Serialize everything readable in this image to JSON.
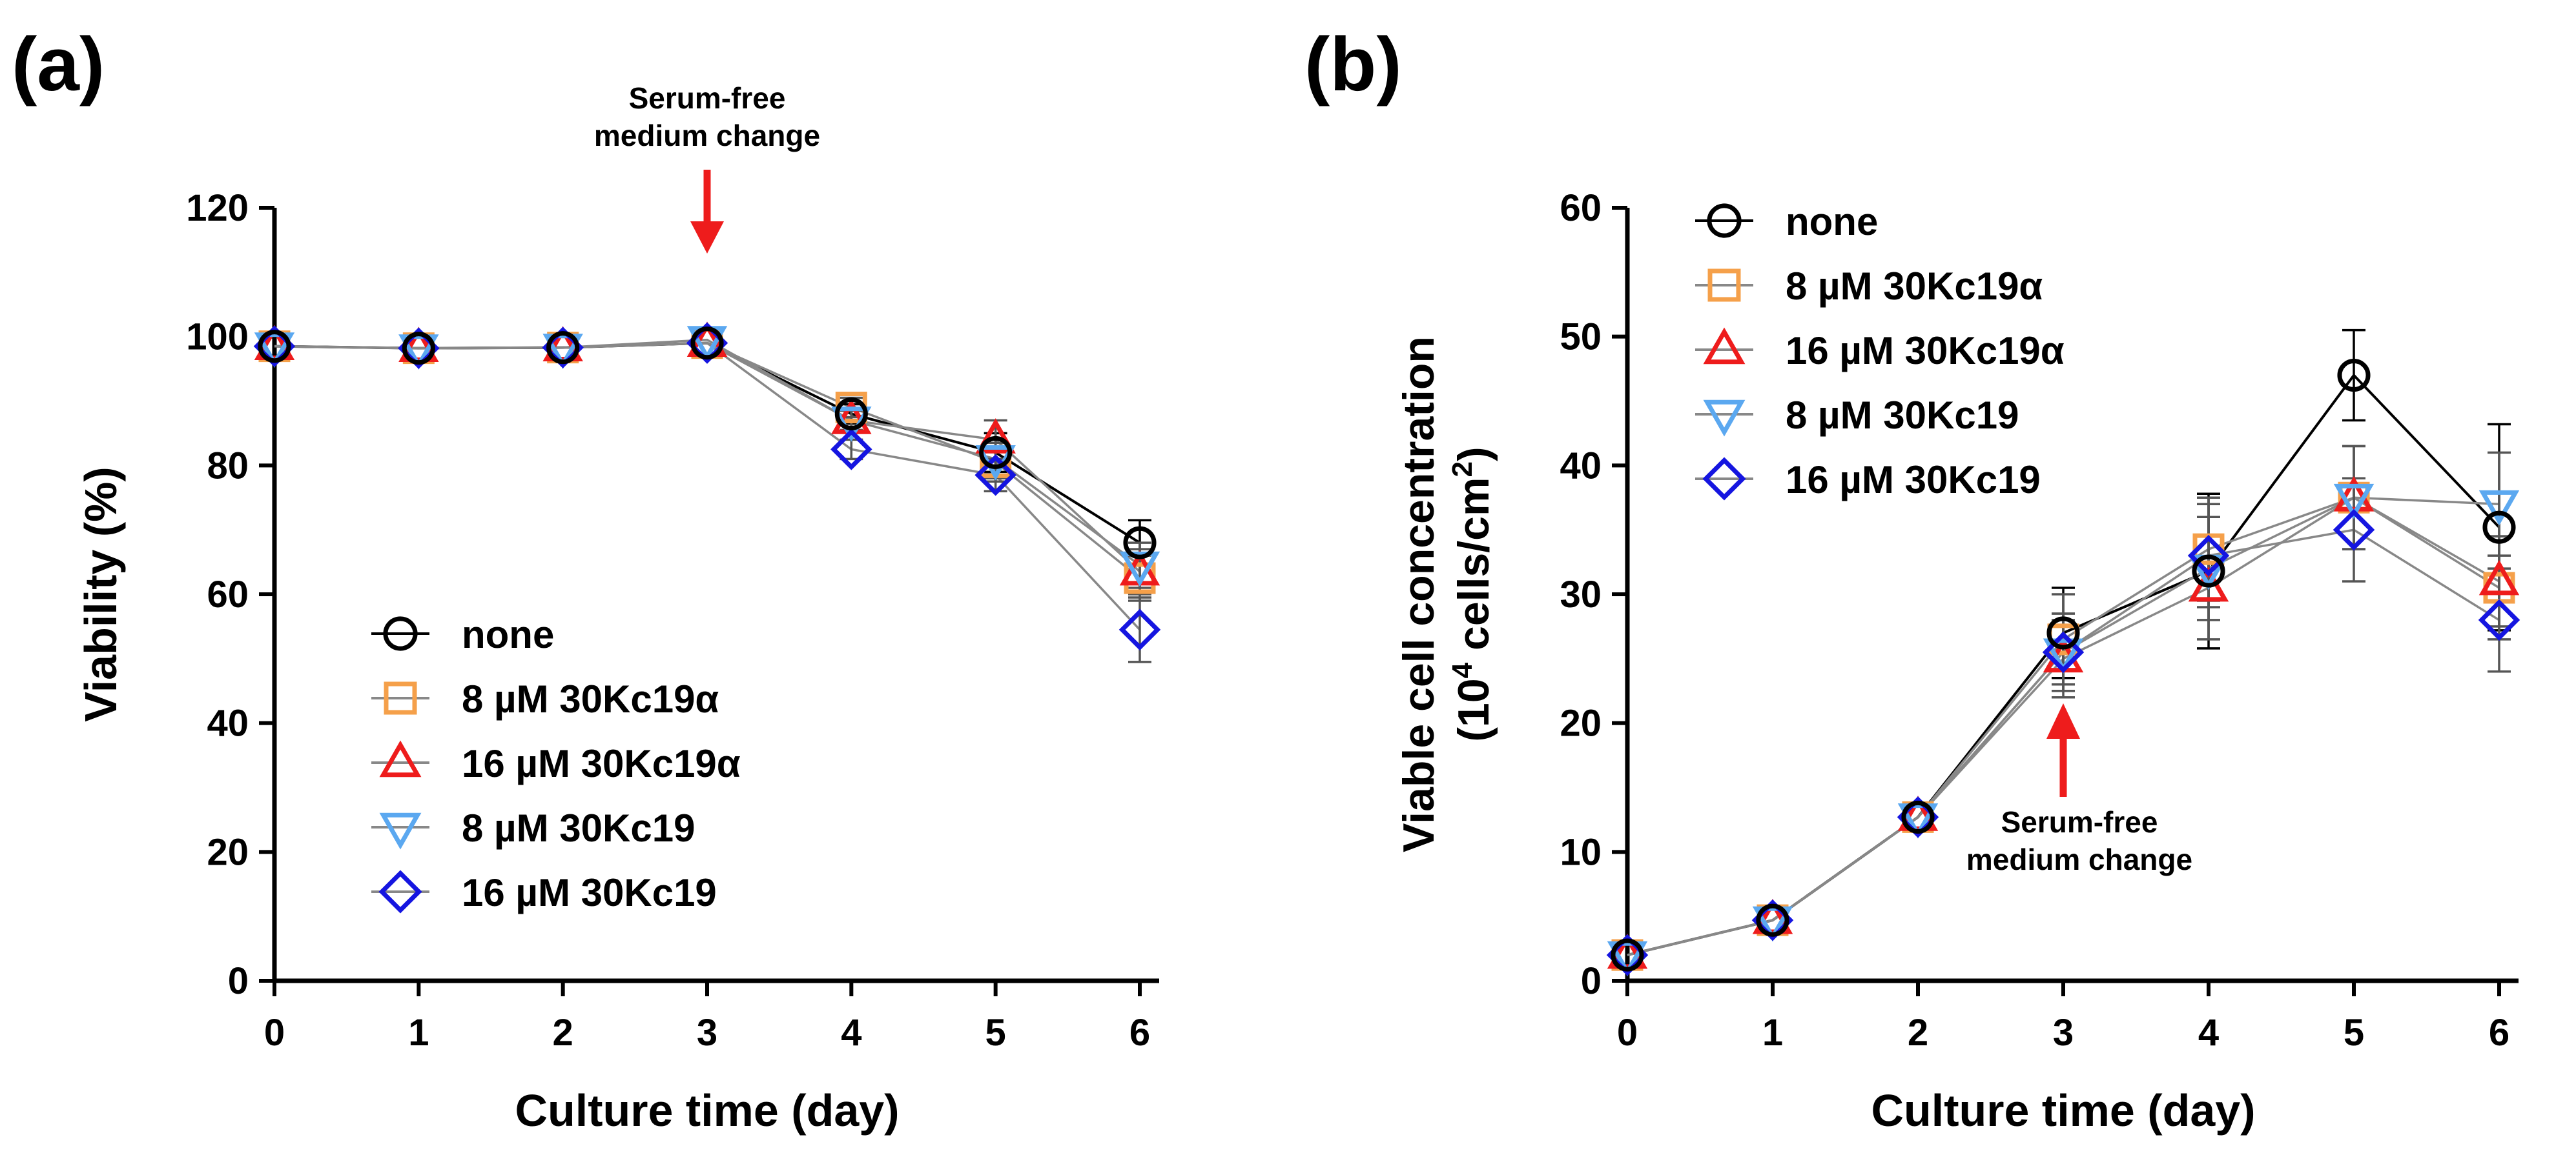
{
  "colors": {
    "none": "#000000",
    "8 µM 30Kc19α": "#F5A04A",
    "16 µM 30Kc19α": "#EE1C1C",
    "8 µM 30Kc19": "#5BA8F0",
    "16 µM 30Kc19": "#1515E0",
    "axis": "#000000",
    "annotation_arrow": "#EE1C1C",
    "connector_line": "#888888"
  },
  "chart_data": [
    {
      "panel_label": "(a)",
      "type": "line",
      "title": "",
      "xlabel": "Culture time (day)",
      "ylabel": "Viability (%)",
      "xlim": [
        0,
        6
      ],
      "ylim": [
        0,
        120
      ],
      "xticks": [
        "0",
        "1",
        "2",
        "3",
        "4",
        "5",
        "6"
      ],
      "yticks": [
        "0",
        "20",
        "40",
        "60",
        "80",
        "100",
        "120"
      ],
      "x": [
        0,
        1,
        2,
        3,
        4,
        5,
        6
      ],
      "legend_position": "bottom-left",
      "series": [
        {
          "name": "none",
          "marker": "circle",
          "values": [
            98.5,
            98.2,
            98.3,
            99.0,
            88.0,
            82.0,
            68.0
          ],
          "errors": [
            0,
            0,
            0,
            0,
            1.5,
            3.0,
            3.5
          ]
        },
        {
          "name": "8 µM 30Kc19α",
          "marker": "square",
          "values": [
            98.5,
            98.2,
            98.3,
            99.0,
            89.0,
            80.5,
            62.5
          ],
          "errors": [
            0,
            0,
            0,
            0,
            1.5,
            3.0,
            3.5
          ]
        },
        {
          "name": "16 µM 30Kc19α",
          "marker": "triangle-up",
          "values": [
            98.5,
            98.2,
            98.3,
            99.0,
            87.0,
            84.0,
            63.5
          ],
          "errors": [
            0,
            0,
            0,
            0,
            1.5,
            3.0,
            3.5
          ]
        },
        {
          "name": "8 µM 30Kc19",
          "marker": "triangle-down",
          "values": [
            98.5,
            98.2,
            98.3,
            99.5,
            87.0,
            81.0,
            64.5
          ],
          "errors": [
            0,
            0,
            0,
            0,
            1.5,
            3.0,
            3.5
          ]
        },
        {
          "name": "16 µM 30Kc19",
          "marker": "diamond",
          "values": [
            98.5,
            98.2,
            98.3,
            99.0,
            82.5,
            78.5,
            54.5
          ],
          "errors": [
            0,
            0,
            0,
            0,
            1.5,
            2.5,
            5.0
          ]
        }
      ],
      "annotation": {
        "lines": [
          "Serum-free",
          "medium change"
        ],
        "x": 3,
        "arrow": "down"
      }
    },
    {
      "panel_label": "(b)",
      "type": "line",
      "title": "",
      "xlabel": "Culture time (day)",
      "ylabel_line1": "Viable cell concentration",
      "ylabel_line2_prefix": "(10",
      "ylabel_line2_exp": "4",
      "ylabel_line2_mid": " cells/cm",
      "ylabel_line2_exp2": "2",
      "ylabel_line2_suffix": ")",
      "xlim": [
        0,
        6
      ],
      "ylim": [
        0,
        60
      ],
      "xticks": [
        "0",
        "1",
        "2",
        "3",
        "4",
        "5",
        "6"
      ],
      "yticks": [
        "0",
        "10",
        "20",
        "30",
        "40",
        "50",
        "60"
      ],
      "x": [
        0,
        1,
        2,
        3,
        4,
        5,
        6
      ],
      "legend_position": "top-left",
      "series": [
        {
          "name": "none",
          "marker": "circle",
          "values": [
            2.0,
            4.7,
            12.7,
            27.0,
            31.8,
            47.0,
            35.2
          ],
          "errors": [
            0,
            0,
            0,
            3.5,
            6.0,
            3.5,
            8.0
          ]
        },
        {
          "name": "8 µM 30Kc19α",
          "marker": "square",
          "values": [
            2.0,
            4.7,
            12.7,
            26.5,
            33.5,
            37.5,
            30.5
          ],
          "errors": [
            0,
            0,
            0,
            3.5,
            4.0,
            4.0,
            4.0
          ]
        },
        {
          "name": "16 µM 30Kc19α",
          "marker": "triangle-up",
          "values": [
            2.0,
            4.7,
            12.7,
            25.0,
            30.5,
            37.5,
            31.0
          ],
          "errors": [
            0,
            0,
            0,
            3.0,
            4.0,
            4.0,
            3.5
          ]
        },
        {
          "name": "8 µM 30Kc19",
          "marker": "triangle-down",
          "values": [
            2.0,
            4.7,
            12.7,
            25.5,
            32.0,
            37.5,
            37.0
          ],
          "errors": [
            0,
            0,
            0,
            3.0,
            4.0,
            4.0,
            4.0
          ]
        },
        {
          "name": "16 µM 30Kc19",
          "marker": "diamond",
          "values": [
            2.0,
            4.7,
            12.7,
            25.5,
            33.0,
            35.0,
            28.0
          ],
          "errors": [
            0,
            0,
            0,
            3.0,
            4.0,
            4.0,
            4.0
          ]
        }
      ],
      "annotation": {
        "lines": [
          "Serum-free",
          "medium change"
        ],
        "x": 3,
        "arrow": "up"
      }
    }
  ]
}
